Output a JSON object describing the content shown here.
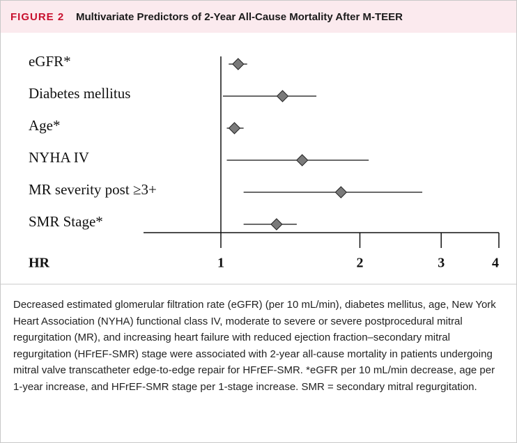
{
  "header": {
    "label": "FIGURE 2",
    "title": "Multivariate Predictors of 2-Year All-Cause Mortality After M-TEER"
  },
  "chart_data": {
    "type": "forest",
    "categories": [
      "eGFR*",
      "Diabetes mellitus",
      "Age*",
      "NYHA IV",
      "MR severity post ≥3+",
      "SMR Stage*"
    ],
    "values": [
      1.09,
      1.36,
      1.07,
      1.5,
      1.82,
      1.32
    ],
    "lower": [
      1.04,
      1.01,
      1.03,
      1.03,
      1.12,
      1.12
    ],
    "upper": [
      1.14,
      1.61,
      1.12,
      2.09,
      2.73,
      1.46
    ],
    "color": "#7a7a7a",
    "x_label": "HR",
    "log_x": true,
    "xlim": [
      0.68,
      4
    ],
    "xticks": [
      1,
      2,
      3,
      4
    ]
  },
  "caption": "Decreased estimated glomerular filtration rate (eGFR) (per 10 mL/min), diabetes mellitus, age, New York Heart Association (NYHA) functional class IV, moderate to severe or severe postprocedural mitral regurgitation (MR), and increasing heart failure with reduced ejection fraction–secondary mitral regurgitation (HFrEF-SMR) stage were associated with 2-year all-cause mortality in patients undergoing mitral valve transcatheter edge-to-edge repair for HFrEF-SMR. *eGFR per 10 mL/min decrease, age per 1-year increase, and HFrEF-SMR stage per 1-stage increase. SMR = secondary mitral regurgitation."
}
